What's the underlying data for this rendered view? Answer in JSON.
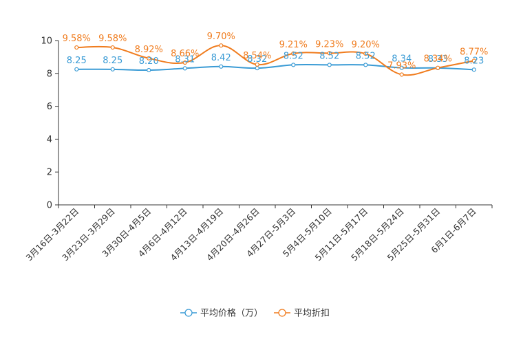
{
  "chart_data": {
    "type": "line",
    "title": "",
    "xlabel": "",
    "ylabel": "",
    "ylim": [
      0,
      10
    ],
    "yticks": [
      0,
      2,
      4,
      6,
      8,
      10
    ],
    "grid": false,
    "legend_position": "bottom-center",
    "categories": [
      "3月16日-3月22日",
      "3月23日-3月29日",
      "3月30日-4月5日",
      "4月6日-4月12日",
      "4月13日-4月19日",
      "4月20日-4月26日",
      "4月27日-5月3日",
      "5月4日-5月10日",
      "5月11日-5月17日",
      "5月18日-5月24日",
      "5月25日-5月31日",
      "6月1日-6月7日"
    ],
    "series": [
      {
        "name": "平均价格（万）",
        "color": "#3a9bd5",
        "values": [
          8.25,
          8.25,
          8.2,
          8.31,
          8.42,
          8.32,
          8.52,
          8.52,
          8.52,
          8.34,
          8.33,
          8.23
        ],
        "labels": [
          "8.25",
          "8.25",
          "8.20",
          "8.31",
          "8.42",
          "8.32",
          "8.52",
          "8.52",
          "8.52",
          "8.34",
          "8.33",
          "8.23"
        ]
      },
      {
        "name": "平均折扣",
        "color": "#f07c1e",
        "values": [
          9.58,
          9.58,
          8.92,
          8.66,
          9.7,
          8.54,
          9.21,
          9.23,
          9.2,
          7.93,
          8.34,
          8.77
        ],
        "labels": [
          "9.58%",
          "9.58%",
          "8.92%",
          "8.66%",
          "9.70%",
          "8.54%",
          "9.21%",
          "9.23%",
          "9.20%",
          "7.93%",
          "8.34%",
          "8.77%"
        ]
      }
    ]
  }
}
